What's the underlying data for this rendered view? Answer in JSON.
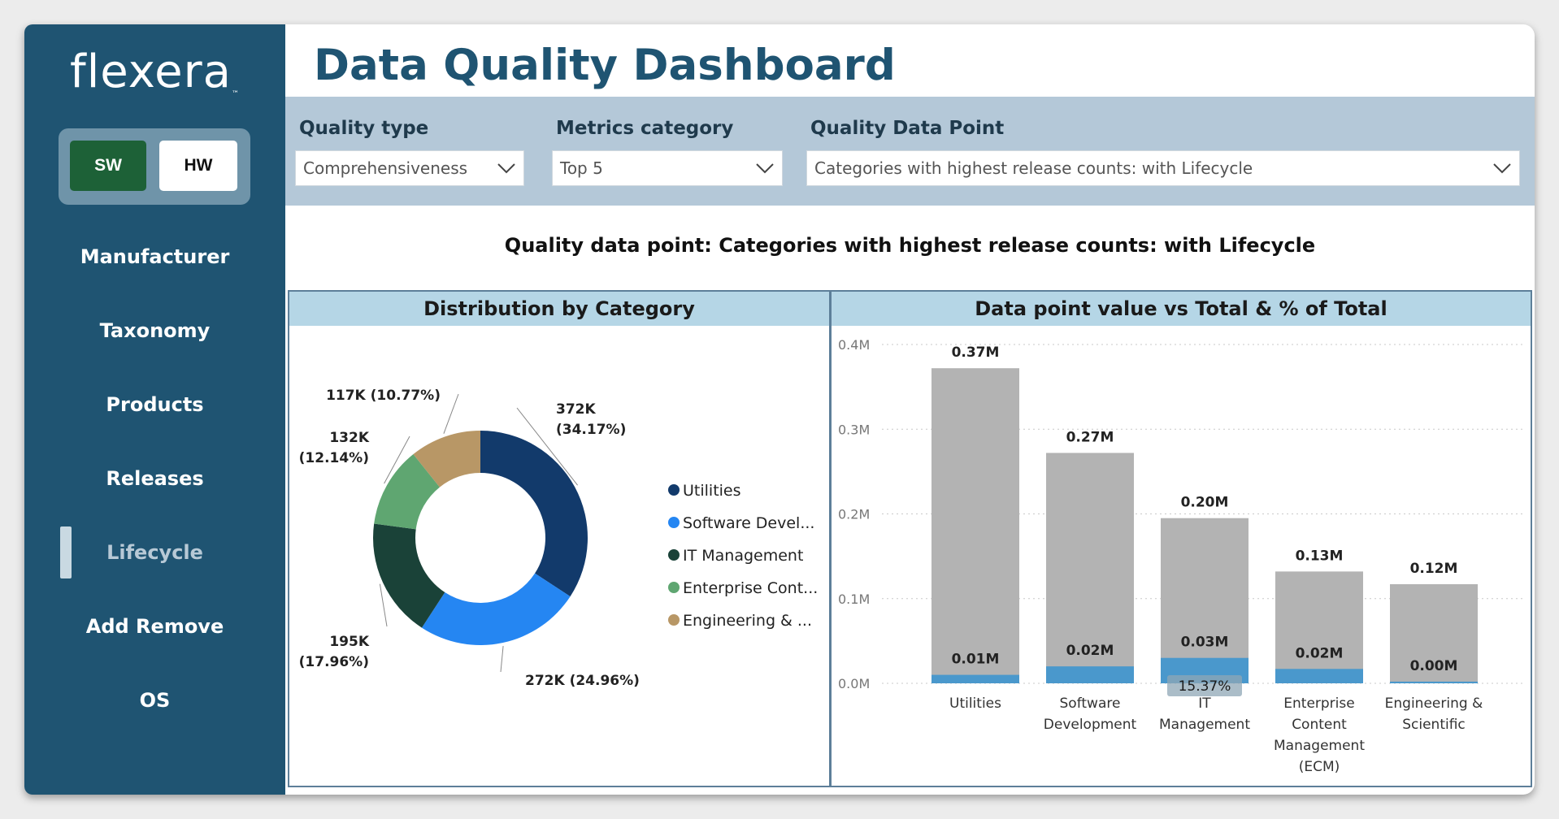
{
  "sidebar": {
    "logo": "flexera",
    "logo_tm": "™",
    "toggle": {
      "sw": "SW",
      "hw": "HW",
      "selected": "SW"
    },
    "nav": [
      {
        "label": "Manufacturer"
      },
      {
        "label": "Taxonomy"
      },
      {
        "label": "Products"
      },
      {
        "label": "Releases"
      },
      {
        "label": "Lifecycle",
        "active": true
      },
      {
        "label": "Add Remove"
      },
      {
        "label": "OS"
      }
    ]
  },
  "header": {
    "title": "Data Quality Dashboard"
  },
  "filters": {
    "quality_type": {
      "label": "Quality type",
      "value": "Comprehensiveness"
    },
    "metrics_category": {
      "label": "Metrics category",
      "value": "Top 5"
    },
    "quality_data_point": {
      "label": "Quality Data Point",
      "value": "Categories with highest release counts: with Lifecycle"
    }
  },
  "headline": "Quality data point: Categories with highest release counts: with Lifecycle",
  "colors": {
    "sidebar": "#1f5472",
    "utilities": "#123a6b",
    "software": "#2586f2",
    "it": "#1a4238",
    "enterprise": "#5fa671",
    "engineering": "#b89766",
    "bar_total": "#b3b3b3",
    "bar_value": "#4a98cc"
  },
  "chart_data": [
    {
      "type": "pie",
      "title": "Distribution by Category",
      "donut": true,
      "slices": [
        {
          "category": "Utilities",
          "legend": "Utilities",
          "value": 372000,
          "label": "372K",
          "percent_label": "(34.17%)",
          "color": "#123a6b"
        },
        {
          "category": "Software Development",
          "legend": "Software Devel...",
          "value": 272000,
          "label": "272K (24.96%)",
          "color": "#2586f2"
        },
        {
          "category": "IT Management",
          "legend": "IT Management",
          "value": 195000,
          "label": "195K",
          "percent_label": "(17.96%)",
          "color": "#1a4238"
        },
        {
          "category": "Enterprise Content Management (ECM)",
          "legend": "Enterprise Cont...",
          "value": 132000,
          "label": "132K",
          "percent_label": "(12.14%)",
          "color": "#5fa671"
        },
        {
          "category": "Engineering & Scientific",
          "legend": "Engineering & ...",
          "value": 117000,
          "label": "117K (10.77%)",
          "color": "#b89766"
        }
      ],
      "legend_position": "right"
    },
    {
      "type": "bar",
      "title": "Data point value vs Total & % of Total",
      "categories": [
        [
          "Utilities"
        ],
        [
          "Software",
          "Development"
        ],
        [
          "IT",
          "Management"
        ],
        [
          "Enterprise",
          "Content",
          "Management",
          "(ECM)"
        ],
        [
          "Engineering &",
          "Scientific"
        ]
      ],
      "series": [
        {
          "values": [
            0.372,
            0.272,
            0.195,
            0.132,
            0.117
          ],
          "labels": [
            "0.37M",
            "0.27M",
            "0.20M",
            "0.13M",
            "0.12M"
          ],
          "color": "#b3b3b3"
        },
        {
          "values": [
            0.01,
            0.02,
            0.03,
            0.017,
            0.002
          ],
          "labels": [
            "0.01M",
            "0.02M",
            "0.03M",
            "0.02M",
            "0.00M"
          ],
          "color": "#4a98cc"
        }
      ],
      "annotation": {
        "category_index": 2,
        "text": "15.37%"
      },
      "ylim": [
        0,
        0.4
      ],
      "yticks": [
        0,
        0.1,
        0.2,
        0.3,
        0.4
      ],
      "ytick_labels": [
        "0.0M",
        "0.1M",
        "0.2M",
        "0.3M",
        "0.4M"
      ],
      "grid": true
    }
  ]
}
